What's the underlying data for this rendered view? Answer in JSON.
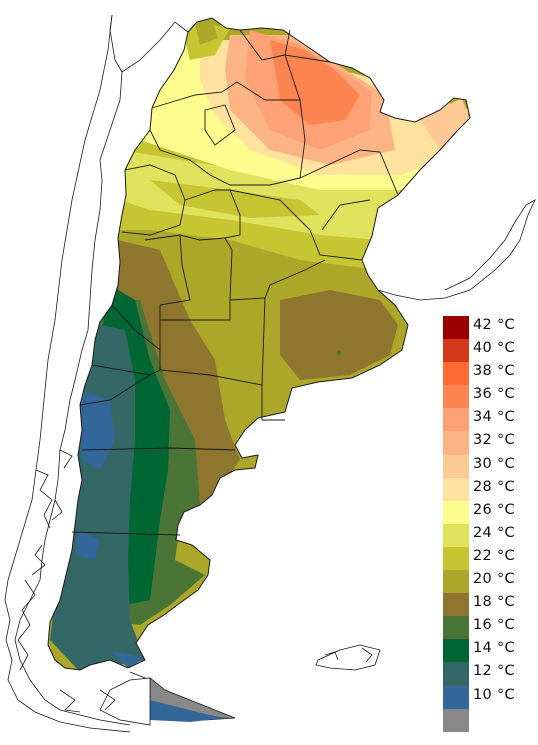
{
  "legend": {
    "items": [
      {
        "label": "42 °C",
        "color": "#990000"
      },
      {
        "label": "40 °C",
        "color": "#d43a19"
      },
      {
        "label": "38 °C",
        "color": "#ff6b33"
      },
      {
        "label": "36 °C",
        "color": "#fb8450"
      },
      {
        "label": "34 °C",
        "color": "#fda276"
      },
      {
        "label": "32 °C",
        "color": "#fbb584"
      },
      {
        "label": "30 °C",
        "color": "#ffc995"
      },
      {
        "label": "28 °C",
        "color": "#ffe29d"
      },
      {
        "label": "26 °C",
        "color": "#fdfd8d"
      },
      {
        "label": "24 °C",
        "color": "#dfe25c"
      },
      {
        "label": "22 °C",
        "color": "#c7c632"
      },
      {
        "label": "20 °C",
        "color": "#aca729"
      },
      {
        "label": "18 °C",
        "color": "#8e762f"
      },
      {
        "label": "16 °C",
        "color": "#4b7537"
      },
      {
        "label": "14 °C",
        "color": "#006633"
      },
      {
        "label": "12 °C",
        "color": "#336866"
      },
      {
        "label": "10 °C",
        "color": "#336699"
      },
      {
        "label": "",
        "color": "#888888"
      }
    ]
  },
  "colors": {
    "background": "#ffffff",
    "outline": "#1a1a1a"
  }
}
